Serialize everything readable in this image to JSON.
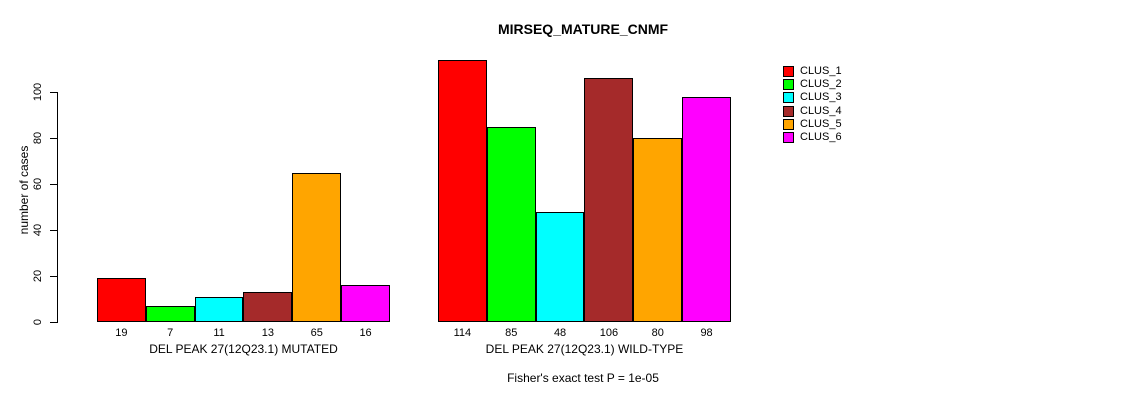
{
  "chart_data": {
    "type": "bar",
    "title": "MIRSEQ_MATURE_CNMF",
    "xlabel": "",
    "ylabel": "number of cases",
    "ylim": [
      0,
      100
    ],
    "yticks": [
      0,
      20,
      40,
      60,
      80,
      100
    ],
    "grid": false,
    "legend_position": "right",
    "series": [
      {
        "name": "CLUS_1",
        "color": "#FF0000"
      },
      {
        "name": "CLUS_2",
        "color": "#00FF00"
      },
      {
        "name": "CLUS_3",
        "color": "#00FFFF"
      },
      {
        "name": "CLUS_4",
        "color": "#A52A2A"
      },
      {
        "name": "CLUS_5",
        "color": "#FFA500"
      },
      {
        "name": "CLUS_6",
        "color": "#FF00FF"
      }
    ],
    "groups": [
      {
        "label": "DEL PEAK 27(12Q23.1) MUTATED",
        "values": [
          19,
          7,
          11,
          13,
          65,
          16
        ]
      },
      {
        "label": "DEL PEAK 27(12Q23.1) WILD-TYPE",
        "values": [
          114,
          85,
          48,
          106,
          80,
          98
        ]
      }
    ],
    "annotation": "Fisher's exact test P = 1e-05"
  }
}
